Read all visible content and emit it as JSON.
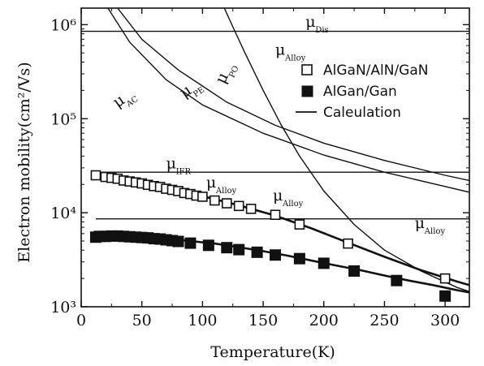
{
  "chart_data": {
    "type": "scatter",
    "xlabel": "Temperature(K)",
    "ylabel": "Electron mobility(cm²/Vs)",
    "xlim": [
      0,
      320
    ],
    "ylim": [
      1000,
      1500000
    ],
    "yscale": "log",
    "x_ticks": [
      0,
      50,
      100,
      150,
      200,
      250,
      300
    ],
    "y_ticks": [
      {
        "value": 1000,
        "label": "10³"
      },
      {
        "value": 10000,
        "label": "10⁴"
      },
      {
        "value": 100000,
        "label": "10⁵"
      },
      {
        "value": 1000000,
        "label": "10⁶"
      }
    ],
    "legend": {
      "position": "top-right",
      "entries": [
        {
          "label": "AlGaN/AlN/GaN",
          "marker": "open-square"
        },
        {
          "label": "AlGan/Gan",
          "marker": "filled-square"
        },
        {
          "label": "Caleulation",
          "marker": "line"
        }
      ]
    },
    "series": [
      {
        "name": "AlGaN/AlN/GaN",
        "marker": "open-square",
        "points": [
          [
            12,
            25000
          ],
          [
            20,
            24000
          ],
          [
            25,
            23500
          ],
          [
            30,
            23000
          ],
          [
            35,
            22000
          ],
          [
            40,
            21500
          ],
          [
            45,
            21000
          ],
          [
            50,
            20500
          ],
          [
            55,
            19800
          ],
          [
            60,
            19200
          ],
          [
            65,
            18800
          ],
          [
            70,
            18000
          ],
          [
            75,
            17500
          ],
          [
            80,
            17000
          ],
          [
            85,
            16200
          ],
          [
            90,
            15800
          ],
          [
            95,
            15200
          ],
          [
            100,
            14800
          ],
          [
            110,
            13500
          ],
          [
            120,
            12600
          ],
          [
            130,
            11800
          ],
          [
            140,
            11000
          ],
          [
            160,
            9500
          ],
          [
            180,
            7500
          ],
          [
            220,
            4700
          ],
          [
            300,
            2000
          ]
        ]
      },
      {
        "name": "AlGan/Gan",
        "marker": "filled-square",
        "points": [
          [
            12,
            5500
          ],
          [
            15,
            5600
          ],
          [
            20,
            5600
          ],
          [
            25,
            5650
          ],
          [
            30,
            5650
          ],
          [
            35,
            5600
          ],
          [
            40,
            5550
          ],
          [
            45,
            5500
          ],
          [
            50,
            5450
          ],
          [
            55,
            5400
          ],
          [
            60,
            5300
          ],
          [
            65,
            5250
          ],
          [
            70,
            5150
          ],
          [
            75,
            5050
          ],
          [
            80,
            4950
          ],
          [
            90,
            4750
          ],
          [
            105,
            4500
          ],
          [
            120,
            4250
          ],
          [
            130,
            4050
          ],
          [
            145,
            3800
          ],
          [
            160,
            3550
          ],
          [
            180,
            3250
          ],
          [
            200,
            2900
          ],
          [
            225,
            2400
          ],
          [
            260,
            1900
          ],
          [
            300,
            1300
          ]
        ]
      }
    ],
    "calculation_curves": [
      {
        "label": "Dis",
        "points": [
          [
            0,
            850000
          ],
          [
            320,
            850000
          ]
        ]
      },
      {
        "label": "IFR",
        "points": [
          [
            12,
            27000
          ],
          [
            320,
            27000
          ]
        ]
      },
      {
        "label": "Alloy",
        "points": [
          [
            12,
            8600
          ],
          [
            320,
            8600
          ]
        ]
      },
      {
        "label": "AC",
        "points": [
          [
            22,
            1500000
          ],
          [
            40,
            650000
          ],
          [
            70,
            260000
          ],
          [
            100,
            140000
          ],
          [
            150,
            70000
          ],
          [
            200,
            41000
          ],
          [
            250,
            27000
          ],
          [
            300,
            19000
          ],
          [
            320,
            16500
          ]
        ]
      },
      {
        "label": "PE",
        "points": [
          [
            30,
            1500000
          ],
          [
            50,
            700000
          ],
          [
            80,
            330000
          ],
          [
            120,
            150000
          ],
          [
            160,
            85000
          ],
          [
            200,
            55000
          ],
          [
            250,
            36000
          ],
          [
            300,
            25000
          ],
          [
            320,
            22000
          ]
        ]
      },
      {
        "label": "PO",
        "points": [
          [
            118,
            1500000
          ],
          [
            125,
            950000
          ],
          [
            135,
            500000
          ],
          [
            150,
            200000
          ],
          [
            165,
            85000
          ],
          [
            180,
            40000
          ],
          [
            200,
            17000
          ],
          [
            225,
            7500
          ],
          [
            250,
            4000
          ],
          [
            280,
            2400
          ],
          [
            310,
            1600
          ],
          [
            320,
            1450
          ]
        ]
      },
      {
        "label": "Alloy",
        "points": [
          [
            12,
            26000
          ],
          [
            30,
            24000
          ],
          [
            50,
            21000
          ],
          [
            80,
            17500
          ],
          [
            100,
            15000
          ],
          [
            130,
            12000
          ],
          [
            160,
            9300
          ],
          [
            190,
            6800
          ],
          [
            220,
            4800
          ],
          [
            250,
            3400
          ],
          [
            280,
            2450
          ],
          [
            310,
            1850
          ],
          [
            320,
            1700
          ]
        ]
      },
      {
        "label": "",
        "points": [
          [
            12,
            5300
          ],
          [
            30,
            5600
          ],
          [
            50,
            5500
          ],
          [
            70,
            5300
          ],
          [
            90,
            5000
          ],
          [
            110,
            4700
          ],
          [
            130,
            4300
          ],
          [
            150,
            3900
          ],
          [
            170,
            3500
          ],
          [
            190,
            3100
          ],
          [
            210,
            2750
          ],
          [
            230,
            2450
          ],
          [
            250,
            2150
          ],
          [
            270,
            1900
          ],
          [
            290,
            1700
          ],
          [
            310,
            1500
          ],
          [
            320,
            1420
          ]
        ]
      }
    ],
    "annotations": [
      {
        "text": "μ",
        "sub": "Dis",
        "x": 185,
        "y": 950000
      },
      {
        "text": "μ",
        "sub": "Alloy",
        "x": 160,
        "y": 480000
      },
      {
        "text": "μ",
        "sub": "PO",
        "x": 118,
        "y": 230000,
        "rotation": -65
      },
      {
        "text": "μ",
        "sub": "PE",
        "x": 85,
        "y": 165000,
        "rotation": -35
      },
      {
        "text": "μ",
        "sub": "AC",
        "x": 30,
        "y": 130000,
        "rotation": -35
      },
      {
        "text": "μ",
        "sub": "IFR",
        "x": 70,
        "y": 29500
      },
      {
        "text": "μ",
        "sub": "Alloy",
        "x": 103,
        "y": 18500
      },
      {
        "text": "μ",
        "sub": "Alloy",
        "x": 158,
        "y": 13500
      },
      {
        "text": "μ",
        "sub": "Alloy",
        "x": 275,
        "y": 6900
      }
    ]
  }
}
